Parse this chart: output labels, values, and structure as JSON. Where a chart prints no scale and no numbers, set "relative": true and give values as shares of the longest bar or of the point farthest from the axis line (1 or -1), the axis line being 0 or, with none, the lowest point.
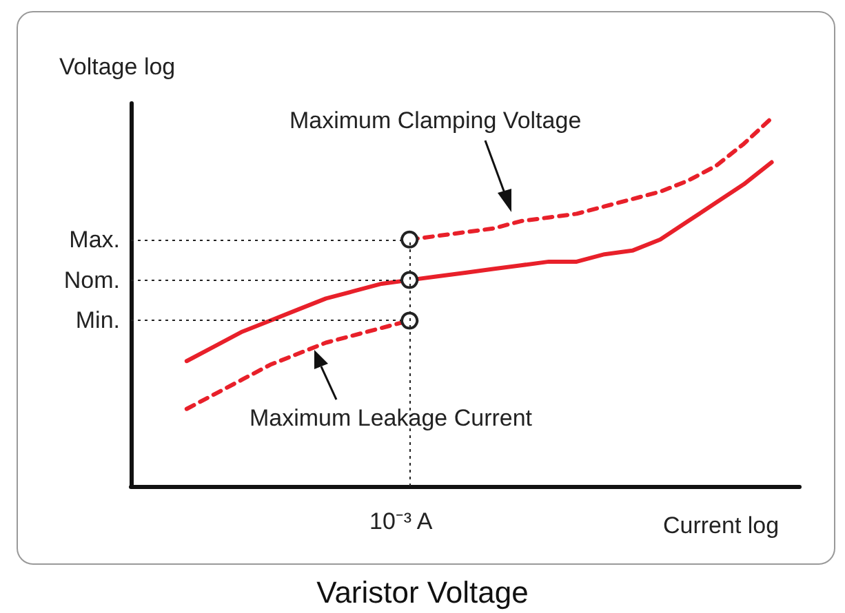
{
  "chart_data": {
    "type": "line",
    "title": "Varistor Voltage",
    "ylabel": "Voltage log",
    "xlabel": "Current log",
    "relative": true,
    "grid": false,
    "categories": [
      null,
      null,
      null,
      null,
      null,
      null,
      null,
      null,
      null,
      null,
      null,
      null,
      null,
      null,
      null,
      null,
      null,
      null,
      null,
      null,
      null,
      null,
      null,
      null,
      null
    ],
    "series": [
      {
        "color": "#e8202a",
        "line_style": "solid",
        "values": [
          null,
          null,
          0.34,
          0.38,
          0.42,
          0.45,
          0.48,
          0.51,
          0.53,
          0.55,
          0.56,
          0.57,
          0.58,
          0.59,
          0.6,
          0.61,
          0.61,
          0.63,
          0.64,
          0.67,
          0.72,
          0.77,
          0.82,
          0.88,
          null
        ]
      },
      {
        "color": "#e8202a",
        "line_style": "dashed",
        "values": [
          null,
          null,
          0.21,
          0.25,
          0.29,
          0.33,
          0.36,
          0.39,
          0.41,
          0.43,
          0.45,
          null,
          null,
          null,
          null,
          null,
          null,
          null,
          null,
          null,
          null,
          null,
          null,
          null,
          null
        ]
      },
      {
        "color": "#e8202a",
        "line_style": "dashed",
        "values": [
          null,
          null,
          null,
          null,
          null,
          null,
          null,
          null,
          null,
          null,
          0.67,
          0.68,
          0.69,
          0.7,
          0.72,
          0.73,
          0.74,
          0.76,
          0.78,
          0.8,
          0.83,
          0.87,
          0.93,
          1,
          null
        ]
      }
    ],
    "ref_lines": [
      {
        "axis": "y",
        "value": 0.67,
        "label": "Max.",
        "line_style": "dotted"
      },
      {
        "axis": "y",
        "value": 0.56,
        "label": "Nom.",
        "line_style": "dotted"
      },
      {
        "axis": "y",
        "value": 0.45,
        "label": "Min.",
        "line_style": "dotted"
      }
    ],
    "annotations": [
      "Maximum Clamping Voltage",
      "Maximum Leakage Current",
      "10⁻³ A"
    ]
  }
}
